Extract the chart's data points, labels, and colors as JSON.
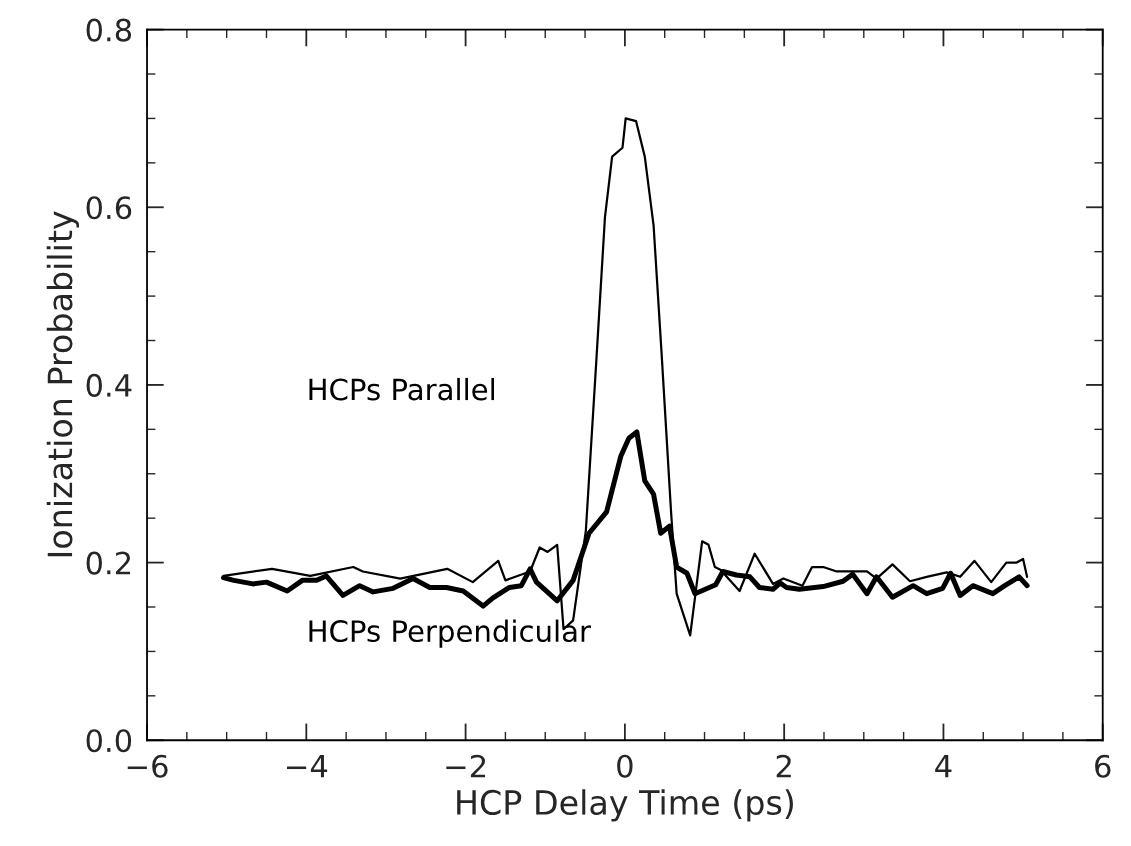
{
  "chart_data": {
    "type": "line",
    "xlabel": "HCP Delay Time (ps)",
    "ylabel": "Ionization Probability",
    "xlim": [
      -6,
      6
    ],
    "xticks": [
      {
        "value": -6,
        "label": "−6"
      },
      {
        "value": -4,
        "label": "−4"
      },
      {
        "value": -2,
        "label": "−2"
      },
      0,
      2,
      4,
      6
    ],
    "ylim": [
      0,
      0.8
    ],
    "yticks": [
      {
        "value": 0,
        "label": "0.0"
      },
      0.2,
      0.4,
      0.6,
      0.8
    ],
    "annotations": [
      "HCPs Parallel",
      "HCPs Perpendicular"
    ],
    "grid": false,
    "legend": false,
    "marker": "none",
    "line_style": "solid",
    "series": [
      {
        "color": "#000000",
        "x": [
          -5.04,
          -4.43,
          -3.95,
          -3.41,
          -3.29,
          -2.82,
          -2.23,
          -1.91,
          -1.59,
          -1.5,
          -1.19,
          -1.07,
          -0.97,
          -0.85,
          -0.77,
          -0.65,
          -0.49,
          -0.36,
          -0.25,
          -0.16,
          -0.03,
          0.01,
          0.14,
          0.25,
          0.36,
          0.46,
          0.58,
          0.65,
          0.82,
          0.97,
          1.05,
          1.13,
          1.2,
          1.44,
          1.63,
          1.86,
          1.99,
          2.23,
          2.35,
          2.49,
          2.66,
          2.79,
          3.04,
          3.16,
          3.36,
          3.58,
          3.79,
          4.04,
          4.21,
          4.39,
          4.6,
          4.79,
          4.92,
          5.0,
          5.05
        ],
        "values": [
          0.185,
          0.193,
          0.185,
          0.195,
          0.19,
          0.182,
          0.193,
          0.178,
          0.202,
          0.18,
          0.19,
          0.217,
          0.212,
          0.22,
          0.125,
          0.135,
          0.236,
          0.425,
          0.589,
          0.657,
          0.667,
          0.7,
          0.697,
          0.657,
          0.58,
          0.437,
          0.257,
          0.165,
          0.118,
          0.224,
          0.22,
          0.195,
          0.192,
          0.168,
          0.21,
          0.176,
          0.182,
          0.174,
          0.195,
          0.195,
          0.19,
          0.19,
          0.19,
          0.182,
          0.198,
          0.179,
          0.184,
          0.189,
          0.184,
          0.202,
          0.178,
          0.2,
          0.2,
          0.204,
          0.184
        ]
      },
      {
        "color": "#000000",
        "x": [
          -5.04,
          -4.91,
          -4.67,
          -4.5,
          -4.24,
          -4.05,
          -3.87,
          -3.75,
          -3.54,
          -3.33,
          -3.16,
          -2.91,
          -2.66,
          -2.45,
          -2.24,
          -2.03,
          -1.78,
          -1.66,
          -1.45,
          -1.3,
          -1.19,
          -1.11,
          -0.95,
          -0.85,
          -0.65,
          -0.45,
          -0.23,
          -0.05,
          0.05,
          0.15,
          0.25,
          0.36,
          0.45,
          0.56,
          0.65,
          0.78,
          0.88,
          1.14,
          1.23,
          1.4,
          1.57,
          1.69,
          1.86,
          1.95,
          2.03,
          2.19,
          2.49,
          2.74,
          2.86,
          3.04,
          3.16,
          3.36,
          3.62,
          3.79,
          3.99,
          4.09,
          4.21,
          4.37,
          4.62,
          4.77,
          4.95,
          5.05
        ],
        "values": [
          0.183,
          0.18,
          0.176,
          0.178,
          0.168,
          0.18,
          0.18,
          0.185,
          0.163,
          0.174,
          0.167,
          0.171,
          0.182,
          0.172,
          0.172,
          0.168,
          0.151,
          0.16,
          0.172,
          0.174,
          0.193,
          0.178,
          0.165,
          0.157,
          0.18,
          0.233,
          0.257,
          0.32,
          0.34,
          0.347,
          0.292,
          0.277,
          0.233,
          0.241,
          0.195,
          0.188,
          0.165,
          0.175,
          0.19,
          0.186,
          0.184,
          0.172,
          0.17,
          0.177,
          0.172,
          0.17,
          0.173,
          0.179,
          0.187,
          0.165,
          0.184,
          0.161,
          0.174,
          0.165,
          0.171,
          0.188,
          0.163,
          0.174,
          0.165,
          0.174,
          0.184,
          0.174
        ]
      }
    ]
  }
}
